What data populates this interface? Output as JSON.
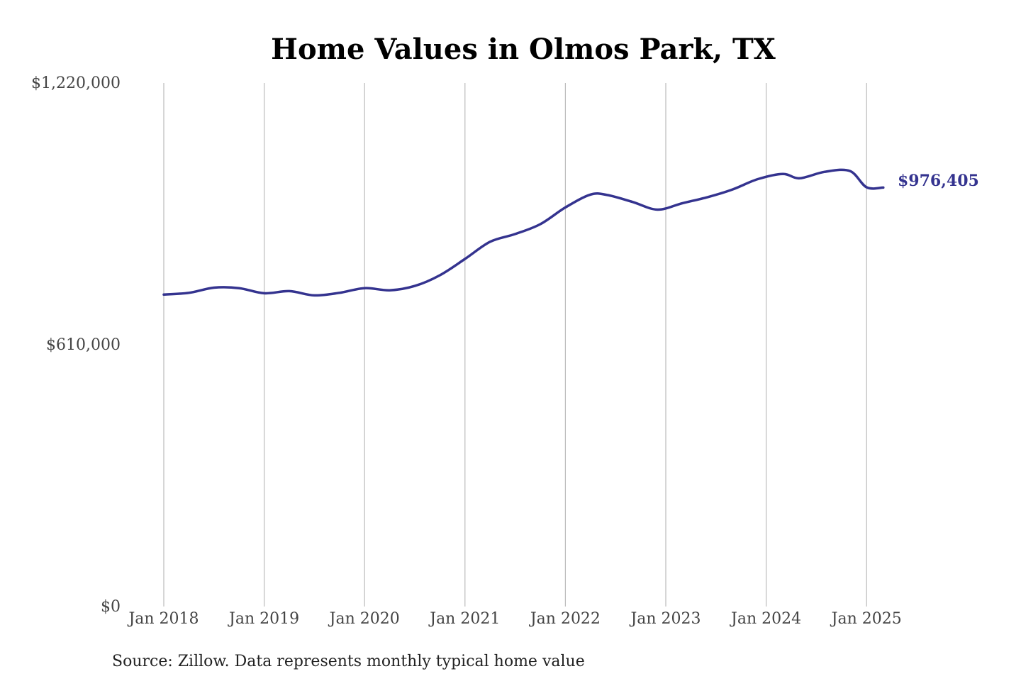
{
  "chart_data": {
    "type": "line",
    "title": "Home Values in Olmos Park, TX",
    "xlabel": "",
    "ylabel": "",
    "ylim": [
      0,
      1220000
    ],
    "y_ticks": [
      {
        "value": 0,
        "label": "$0"
      },
      {
        "value": 610000,
        "label": "$610,000"
      },
      {
        "value": 1220000,
        "label": "$1,220,000"
      }
    ],
    "x_ticks": [
      {
        "value": "2018-01",
        "label": "Jan 2018"
      },
      {
        "value": "2019-01",
        "label": "Jan 2019"
      },
      {
        "value": "2020-01",
        "label": "Jan 2020"
      },
      {
        "value": "2021-01",
        "label": "Jan 2021"
      },
      {
        "value": "2022-01",
        "label": "Jan 2022"
      },
      {
        "value": "2023-01",
        "label": "Jan 2023"
      },
      {
        "value": "2024-01",
        "label": "Jan 2024"
      },
      {
        "value": "2025-01",
        "label": "Jan 2025"
      }
    ],
    "grid": {
      "vertical": true,
      "horizontal": false
    },
    "line_color": "#34338f",
    "series": [
      {
        "x": [
          "2018-01",
          "2018-04",
          "2018-07",
          "2018-10",
          "2019-01",
          "2019-04",
          "2019-07",
          "2019-10",
          "2020-01",
          "2020-04",
          "2020-07",
          "2020-10",
          "2021-01",
          "2021-04",
          "2021-07",
          "2021-10",
          "2022-01",
          "2022-04",
          "2022-06",
          "2022-09",
          "2022-12",
          "2023-03",
          "2023-06",
          "2023-09",
          "2023-12",
          "2024-03",
          "2024-05",
          "2024-08",
          "2024-11",
          "2025-01",
          "2025-03"
        ],
        "values": [
          727000,
          731000,
          743000,
          742000,
          730000,
          735000,
          725000,
          731000,
          742000,
          737000,
          747000,
          772000,
          810000,
          850000,
          868000,
          891000,
          930000,
          960000,
          959000,
          943000,
          925000,
          940000,
          954000,
          972000,
          996000,
          1008000,
          998000,
          1013000,
          1015000,
          977000,
          976405
        ]
      }
    ],
    "end_label": "$976,405",
    "source": "Source: Zillow. Data represents monthly typical home value"
  }
}
